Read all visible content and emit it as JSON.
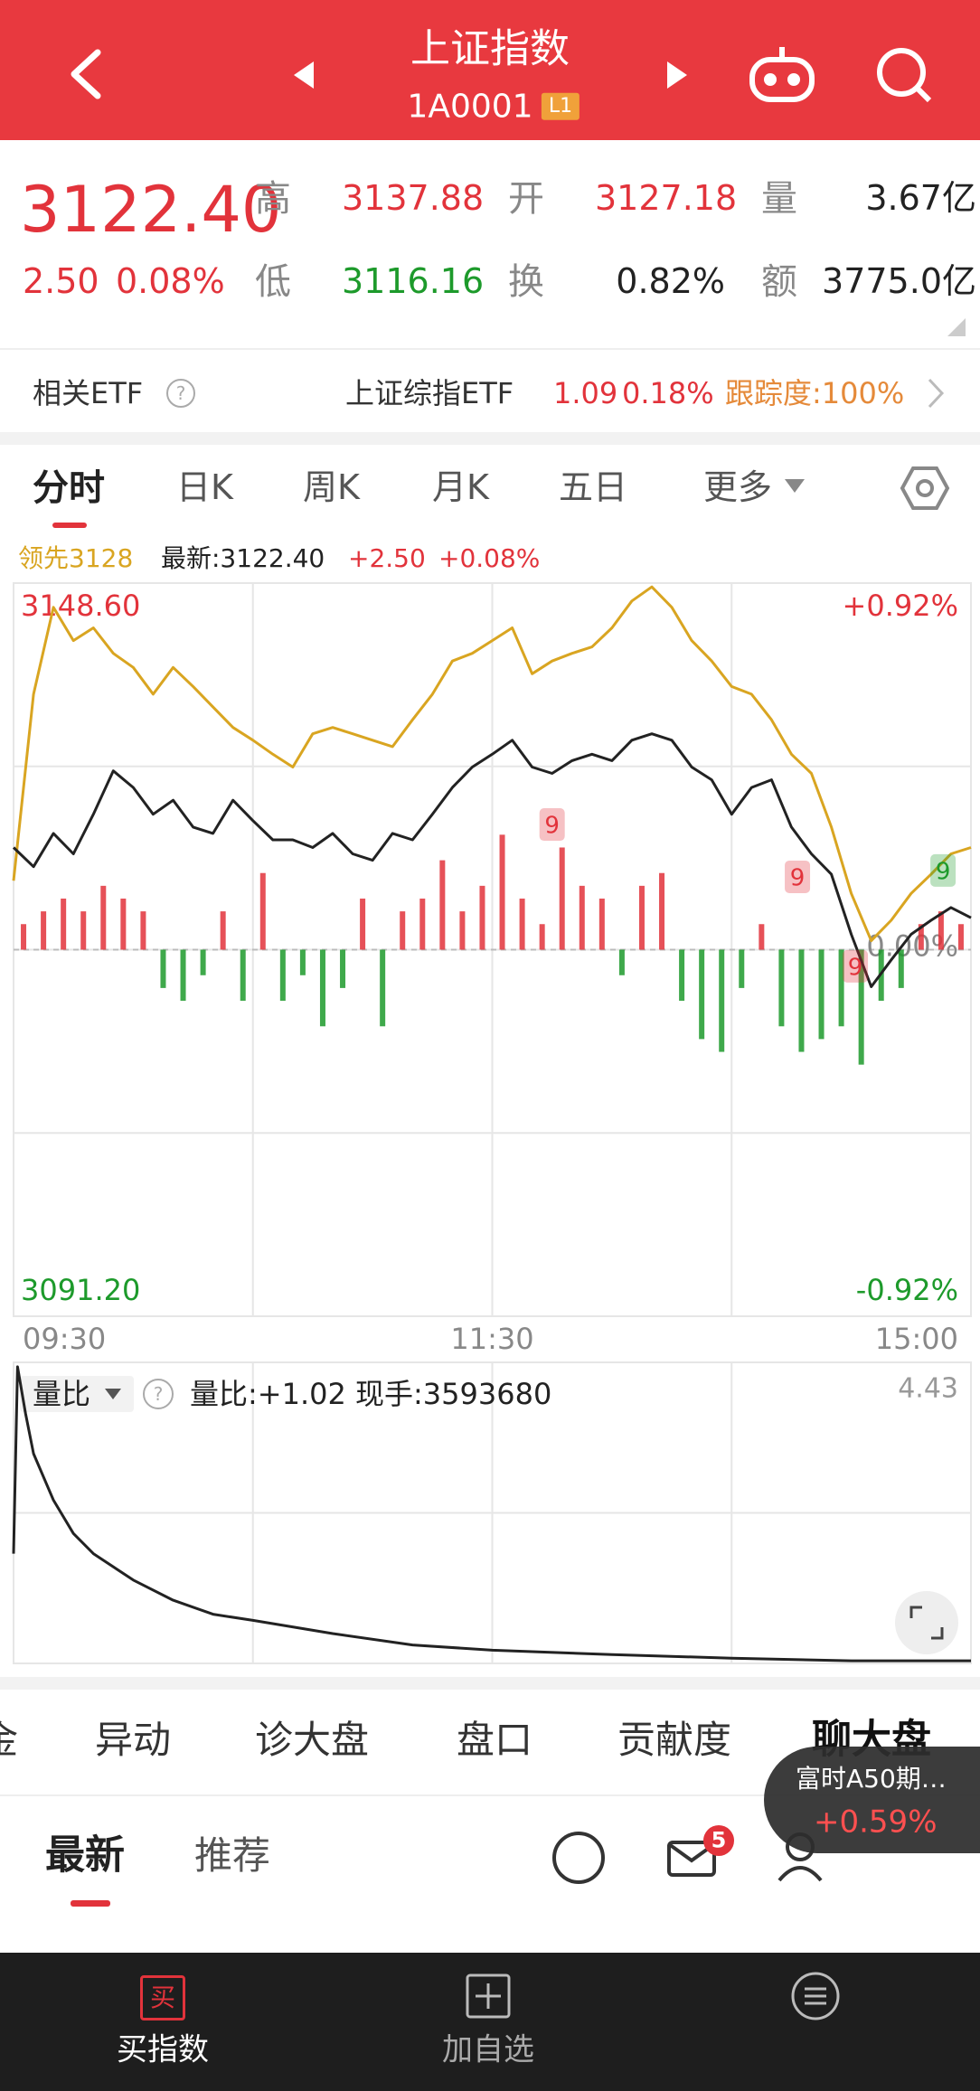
{
  "header": {
    "title": "上证指数",
    "code": "1A0001",
    "badge": "L1"
  },
  "quote": {
    "price": "3122.40",
    "change": "2.50",
    "change_pct": "0.08%",
    "high_label": "高",
    "high": "3137.88",
    "open_label": "开",
    "open": "3127.18",
    "volume_label": "量",
    "volume": "3.67亿",
    "low_label": "低",
    "low": "3116.16",
    "turnover_label": "换",
    "turnover": "0.82%",
    "amount_label": "额",
    "amount": "3775.0亿"
  },
  "etf": {
    "label": "相关ETF",
    "name": "上证综指ETF",
    "price": "1.09",
    "change_pct": "0.18%",
    "tracking": "跟踪度:100%"
  },
  "chart_tabs": [
    "分时",
    "日K",
    "周K",
    "月K",
    "五日",
    "更多"
  ],
  "chart_data": [
    {
      "type": "line",
      "x": [
        0,
        5,
        10,
        15,
        20,
        25,
        30,
        35,
        40,
        45,
        50,
        55,
        60,
        65,
        70,
        75,
        80,
        85,
        90,
        95,
        100,
        105,
        110,
        115,
        120,
        125,
        130,
        135,
        140,
        145,
        150,
        155,
        160,
        165,
        170,
        175,
        180,
        185,
        190,
        195,
        200,
        205,
        210,
        215,
        220,
        225,
        230,
        235,
        240
      ],
      "xlim": [
        0,
        240
      ],
      "xticks": [
        {
          "value": 0,
          "label": "09:30"
        },
        {
          "value": 120,
          "label": "11:30"
        },
        {
          "value": 240,
          "label": "15:00"
        }
      ],
      "ylim": [
        3091.2,
        3148.6
      ],
      "yticks": [
        {
          "value": 3148.6,
          "label": "3148.60"
        },
        {
          "value": 3091.2,
          "label": "3091.20"
        }
      ],
      "y2lim": [
        -0.92,
        0.92
      ],
      "y2ticks": [
        {
          "value": 0.92,
          "label": "+0.92%"
        },
        {
          "value": -0.92,
          "label": "-0.92%"
        },
        {
          "value": 0,
          "label": "0.00%"
        }
      ],
      "up_color": "#e2333b",
      "down_color": "#1d9a2b",
      "change_labels": [
        "+2.50",
        "+0.08%"
      ],
      "series": [
        {
          "name": "领先3128",
          "color": "#d9a521",
          "values": [
            3125.3,
            3139.9,
            3146.7,
            3144.1,
            3145.1,
            3143.1,
            3142.0,
            3139.9,
            3142.0,
            3140.5,
            3138.9,
            3137.3,
            3136.3,
            3135.2,
            3134.2,
            3136.8,
            3137.3,
            3136.8,
            3136.3,
            3135.8,
            3137.9,
            3139.9,
            3142.5,
            3143.1,
            3144.1,
            3145.1,
            3141.5,
            3142.5,
            3143.1,
            3143.6,
            3145.1,
            3147.2,
            3148.3,
            3146.7,
            3144.1,
            3142.5,
            3140.5,
            3139.9,
            3137.9,
            3135.2,
            3133.7,
            3129.5,
            3124.3,
            3120.6,
            3122.2,
            3124.3,
            3125.8,
            3127.4,
            3127.9
          ]
        },
        {
          "name": "最新:3122.40",
          "color": "#222222",
          "values": [
            3127.9,
            3126.4,
            3129.0,
            3127.4,
            3130.5,
            3133.9,
            3132.6,
            3130.5,
            3131.6,
            3129.5,
            3129.0,
            3131.6,
            3130.0,
            3128.5,
            3128.5,
            3127.9,
            3129.0,
            3127.4,
            3126.9,
            3129.0,
            3128.5,
            3130.5,
            3132.6,
            3134.2,
            3135.2,
            3136.3,
            3134.2,
            3133.7,
            3134.7,
            3135.2,
            3134.7,
            3136.3,
            3136.8,
            3136.3,
            3134.2,
            3133.2,
            3130.5,
            3132.6,
            3133.2,
            3129.5,
            3127.4,
            3125.8,
            3121.1,
            3117.0,
            3119.1,
            3121.1,
            3122.2,
            3123.2,
            3122.4
          ]
        }
      ],
      "bars": {
        "x": [
          2.5,
          7.5,
          12.5,
          17.5,
          22.5,
          27.5,
          32.5,
          37.5,
          42.5,
          47.5,
          52.5,
          57.5,
          62.5,
          67.5,
          72.5,
          77.5,
          82.5,
          87.5,
          92.5,
          97.5,
          102.5,
          107.5,
          112.5,
          117.5,
          122.5,
          127.5,
          132.5,
          137.5,
          142.5,
          147.5,
          152.5,
          157.5,
          162.5,
          167.5,
          172.5,
          177.5,
          182.5,
          187.5,
          192.5,
          197.5,
          202.5,
          207.5,
          212.5,
          217.5,
          222.5,
          227.5,
          232.5,
          237.5
        ],
        "values": [
          2,
          3,
          4,
          3,
          5,
          4,
          3,
          -3,
          -4,
          -2,
          3,
          -4,
          6,
          -4,
          -2,
          -6,
          -3,
          4,
          -6,
          3,
          4,
          7,
          3,
          5,
          9,
          4,
          2,
          8,
          5,
          4,
          -2,
          5,
          6,
          -4,
          -7,
          -8,
          -3,
          2,
          -6,
          -8,
          -7,
          -6,
          -9,
          -4,
          -3,
          2,
          3,
          2
        ]
      },
      "annotations": [
        {
          "text": "9",
          "x": 135,
          "y": 3129.7,
          "color": "#e2333b"
        },
        {
          "text": "9",
          "x": 196.5,
          "y": 3125.6,
          "color": "#e2333b"
        },
        {
          "text": "9",
          "x": 211,
          "y": 3118.6,
          "color": "#e2333b"
        },
        {
          "text": "9",
          "x": 233,
          "y": 3126.1,
          "color": "#1d9a2b"
        }
      ]
    },
    {
      "type": "line",
      "selector": "量比",
      "readouts": [
        "量比:+1.02",
        "现手:3593680"
      ],
      "x": [
        0,
        1,
        3,
        5,
        10,
        15,
        20,
        30,
        40,
        50,
        60,
        80,
        100,
        120,
        150,
        180,
        210,
        240
      ],
      "xlim": [
        0,
        240
      ],
      "ylim": [
        1.0,
        4.43
      ],
      "yticks": [
        4.43
      ],
      "series": [
        {
          "color": "#222222",
          "values": [
            2.25,
            4.38,
            3.85,
            3.39,
            2.86,
            2.48,
            2.25,
            1.95,
            1.72,
            1.56,
            1.49,
            1.34,
            1.21,
            1.15,
            1.1,
            1.06,
            1.03,
            1.03
          ]
        }
      ]
    }
  ],
  "section_tabs": [
    "金",
    "异动",
    "诊大盘",
    "盘口",
    "贡献度",
    "聊大盘"
  ],
  "feed_tabs": [
    "最新",
    "推荐"
  ],
  "mail_badge": "5",
  "floating_card": {
    "title": "富时A50期…",
    "change": "+0.59%"
  },
  "nav": {
    "buy_icon": "买",
    "buy": "买指数",
    "watch": "加自选"
  }
}
